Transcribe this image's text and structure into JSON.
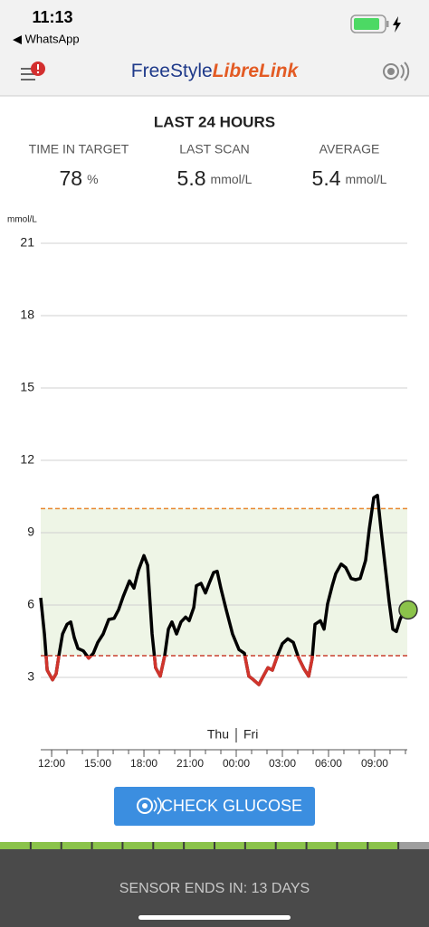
{
  "status_bar": {
    "time": "11:13",
    "back": "◀ WhatsApp"
  },
  "app_title": {
    "brand": "FreeStyle",
    "product": "LibreLink"
  },
  "summary": {
    "title": "LAST 24 HOURS",
    "stats": [
      {
        "label": "TIME IN TARGET",
        "value": "78",
        "unit": "%"
      },
      {
        "label": "LAST SCAN",
        "value": "5.8",
        "unit": "mmol/L"
      },
      {
        "label": "AVERAGE",
        "value": "5.4",
        "unit": "mmol/L"
      }
    ]
  },
  "chart_data": {
    "type": "line",
    "y_label": "mmol/L",
    "day_labels": [
      "Thu",
      "Fri"
    ],
    "x": [
      11.29,
      11.53,
      11.71,
      12.06,
      12.29,
      12.47,
      12.71,
      13.0,
      13.24,
      13.47,
      13.71,
      14.06,
      14.41,
      14.71,
      15.0,
      15.35,
      15.71,
      16.06,
      16.35,
      16.65,
      17.06,
      17.35,
      17.65,
      18.0,
      18.24,
      18.53,
      18.76,
      19.06,
      19.35,
      19.59,
      19.82,
      20.12,
      20.41,
      20.71,
      20.94,
      21.24,
      21.41,
      21.71,
      22.0,
      22.24,
      22.53,
      22.76,
      23.0,
      23.35,
      23.76,
      24.18,
      24.53,
      24.82,
      25.12,
      25.47,
      25.76,
      26.06,
      26.35,
      26.71,
      27.0,
      27.35,
      27.71,
      28.06,
      28.41,
      28.71,
      28.94,
      29.12,
      29.47,
      29.71,
      29.94,
      30.24,
      30.47,
      30.82,
      31.12,
      31.47,
      31.76,
      32.06,
      32.41,
      32.65,
      32.94,
      33.18,
      33.41,
      33.71,
      33.94,
      34.18,
      34.41,
      34.65,
      34.94
    ],
    "values": [
      6.3,
      4.8,
      3.3,
      2.9,
      3.15,
      3.9,
      4.8,
      5.2,
      5.3,
      4.65,
      4.2,
      4.1,
      3.8,
      4.0,
      4.45,
      4.8,
      5.4,
      5.45,
      5.8,
      6.35,
      7.0,
      6.7,
      7.45,
      8.05,
      7.65,
      4.8,
      3.4,
      3.05,
      3.9,
      5.0,
      5.3,
      4.8,
      5.3,
      5.5,
      5.35,
      5.9,
      6.8,
      6.9,
      6.5,
      6.9,
      7.35,
      7.4,
      6.7,
      5.8,
      4.8,
      4.15,
      4.0,
      3.05,
      2.9,
      2.7,
      3.05,
      3.4,
      3.3,
      3.95,
      4.4,
      4.6,
      4.45,
      3.8,
      3.35,
      3.05,
      3.8,
      5.2,
      5.35,
      5.0,
      6.05,
      6.8,
      7.3,
      7.7,
      7.55,
      7.1,
      7.05,
      7.1,
      7.85,
      9.15,
      10.45,
      10.55,
      9.15,
      7.45,
      6.15,
      5.0,
      4.9,
      5.4,
      5.8
    ],
    "color": "#000000",
    "low_color": "#d0342c",
    "target_low": 3.9,
    "target_high": 10,
    "target_fill": "#eef5e6",
    "target_high_color": "#e8862e",
    "target_low_color": "#c8402f",
    "last_point_color": "#8bc34a",
    "xlim": [
      11.29,
      35.12
    ],
    "ylim": [
      0,
      21
    ],
    "xticks": [
      {
        "value": 12,
        "label": "12:00"
      },
      {
        "value": 15,
        "label": "15:00"
      },
      {
        "value": 18,
        "label": "18:00"
      },
      {
        "value": 21,
        "label": "21:00"
      },
      {
        "value": 24,
        "label": "00:00"
      },
      {
        "value": 27,
        "label": "03:00"
      },
      {
        "value": 30,
        "label": "06:00"
      },
      {
        "value": 33,
        "label": "09:00"
      }
    ],
    "xminorticks": [
      12,
      13,
      14,
      15,
      16,
      17,
      18,
      19,
      20,
      21,
      22,
      23,
      24,
      25,
      26,
      27,
      28,
      29,
      30,
      31,
      32,
      33,
      34,
      35
    ],
    "yticks": [
      3,
      6,
      9,
      12,
      15,
      18,
      21
    ],
    "grid": true
  },
  "button": "CHECK GLUCOSE",
  "footer": "SENSOR ENDS IN: 13 DAYS"
}
